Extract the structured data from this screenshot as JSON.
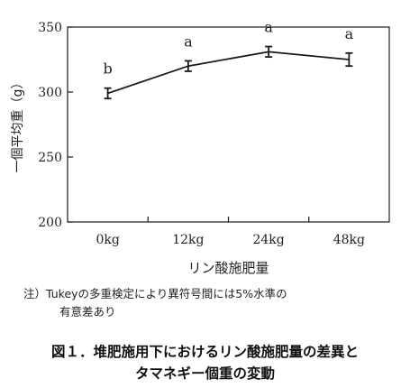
{
  "chart_data": {
    "type": "line",
    "title": "",
    "xlabel": "リン酸施肥量",
    "ylabel": "一個平均重（g）",
    "categories": [
      "0kg",
      "12kg",
      "24kg",
      "48kg"
    ],
    "series": [
      {
        "values": [
          299,
          320,
          331,
          325
        ],
        "errors": [
          4,
          4,
          4,
          5
        ]
      }
    ],
    "significance_letters": [
      "b",
      "a",
      "a",
      "a"
    ],
    "ylim": [
      200,
      350
    ],
    "yticks": [
      200,
      250,
      300,
      350
    ],
    "grid": false,
    "line_color": "#1a1a1a"
  },
  "note": {
    "line1": "注）Tukeyの多重検定により異符号間には5%水準の",
    "line2": "有意差あり"
  },
  "caption": {
    "line1": "図１．堆肥施用下におけるリン酸施肥量の差異と",
    "line2": "タマネギー個重の変動"
  }
}
